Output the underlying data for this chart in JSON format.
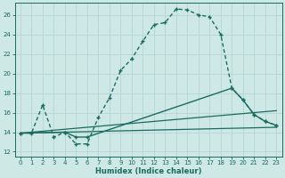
{
  "xlabel": "Humidex (Indice chaleur)",
  "xlim": [
    -0.5,
    23.5
  ],
  "ylim": [
    11.5,
    27.2
  ],
  "xticks": [
    0,
    1,
    2,
    3,
    4,
    5,
    6,
    7,
    8,
    9,
    10,
    11,
    12,
    13,
    14,
    15,
    16,
    17,
    18,
    19,
    20,
    21,
    22,
    23
  ],
  "yticks": [
    12,
    14,
    16,
    18,
    20,
    22,
    24,
    26
  ],
  "bg_color": "#cde8e5",
  "line_color": "#1a6b5e",
  "grid_color": "#b8d8d5",
  "main_x": [
    0,
    1,
    2,
    3,
    4,
    5,
    6,
    7,
    8,
    9,
    10,
    11,
    12,
    13,
    14,
    15,
    16,
    17,
    18,
    19,
    20,
    21,
    22,
    23
  ],
  "main_y": [
    13.9,
    13.9,
    16.8,
    13.5,
    14.0,
    12.8,
    12.8,
    15.5,
    17.5,
    20.3,
    21.5,
    23.3,
    25.0,
    25.2,
    26.6,
    26.5,
    26.0,
    25.8,
    24.0,
    18.5,
    17.3,
    15.8,
    15.1,
    14.7
  ],
  "line2_x": [
    0,
    23
  ],
  "line2_y": [
    13.9,
    14.5
  ],
  "line3_x": [
    0,
    23
  ],
  "line3_y": [
    13.9,
    16.2
  ],
  "line4_x": [
    0,
    4,
    5,
    6,
    19,
    20,
    21,
    22,
    23
  ],
  "line4_y": [
    13.9,
    14.0,
    13.5,
    13.5,
    18.5,
    17.3,
    15.8,
    15.1,
    14.7
  ]
}
